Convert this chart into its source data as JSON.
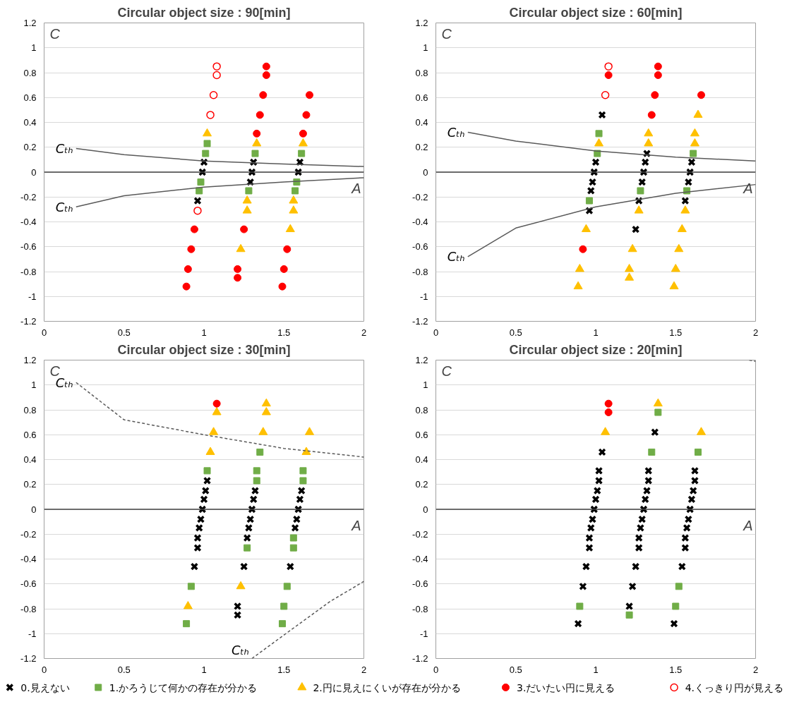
{
  "chart_data": [
    {
      "type": "scatter",
      "title": "Circular object size : 90[min]",
      "xlabel": "A",
      "ylabel": "C",
      "xlim": [
        0,
        2
      ],
      "ylim": [
        -1.2,
        1.2
      ],
      "xticks": [
        0,
        0.5,
        1,
        1.5,
        2
      ],
      "yticks": [
        -1.2,
        -1,
        -0.8,
        -0.6,
        -0.4,
        -0.2,
        0,
        0.2,
        0.4,
        0.6,
        0.8,
        1,
        1.2
      ],
      "grid": "y",
      "legend": "bottom",
      "ref_lines": [
        {
          "axis": "y",
          "value": 0,
          "color": "#404040"
        }
      ],
      "annotations": [
        "Cₜₕ",
        "Cₜₕ"
      ],
      "series": [
        {
          "name": "0.見えない",
          "color": "#000000",
          "marker": "cross",
          "x": [
            1.0,
            0.99,
            0.96,
            1.31,
            1.3,
            1.29,
            1.6,
            1.59
          ],
          "values": [
            0.08,
            0,
            -0.23,
            0.08,
            0,
            -0.08,
            0.08,
            0
          ]
        },
        {
          "name": "1.かろうじて何かの存在が分かる",
          "color": "#70ad47",
          "marker": "square",
          "x": [
            1.02,
            1.01,
            0.98,
            0.97,
            1.32,
            1.28,
            1.61,
            1.58,
            1.57
          ],
          "values": [
            0.23,
            0.15,
            -0.08,
            -0.15,
            0.15,
            -0.15,
            0.15,
            -0.08,
            -0.15
          ]
        },
        {
          "name": "2.円に見えにくいが存在が分かる",
          "color": "#ffc000",
          "marker": "triangle",
          "x": [
            1.02,
            1.33,
            1.27,
            1.27,
            1.23,
            1.62,
            1.56,
            1.56,
            1.54
          ],
          "values": [
            0.31,
            0.23,
            -0.23,
            -0.31,
            -0.62,
            0.23,
            -0.23,
            -0.31,
            -0.46
          ]
        },
        {
          "name": "3.だいたい円に見える",
          "color": "#ff0000",
          "marker": "circle",
          "x": [
            0.94,
            0.92,
            0.9,
            0.89,
            1.39,
            1.39,
            1.37,
            1.35,
            1.33,
            1.25,
            1.21,
            1.21,
            1.66,
            1.64,
            1.62,
            1.52,
            1.5,
            1.49
          ],
          "values": [
            -0.46,
            -0.62,
            -0.78,
            -0.92,
            0.85,
            0.78,
            0.62,
            0.46,
            0.31,
            -0.46,
            -0.78,
            -0.85,
            0.62,
            0.46,
            0.31,
            -0.62,
            -0.78,
            -0.92
          ]
        },
        {
          "name": "4.くっきり円が見える",
          "color": "#ff0000",
          "marker": "circle_open",
          "x": [
            1.08,
            1.08,
            1.06,
            1.04,
            0.96
          ],
          "values": [
            0.85,
            0.78,
            0.62,
            0.46,
            -0.31
          ]
        },
        {
          "type": "line",
          "color": "#595959",
          "line_style": "solid",
          "x": [
            0.2,
            0.5,
            1.0,
            1.5,
            2.0
          ],
          "values": [
            0.19,
            0.14,
            0.09,
            0.065,
            0.045
          ]
        },
        {
          "type": "line",
          "color": "#595959",
          "line_style": "solid",
          "x": [
            0.2,
            0.5,
            1.0,
            1.5,
            2.0
          ],
          "values": [
            -0.28,
            -0.19,
            -0.12,
            -0.08,
            -0.045
          ]
        }
      ]
    },
    {
      "type": "scatter",
      "title": "Circular object size : 60[min]",
      "xlabel": "A",
      "ylabel": "C",
      "xlim": [
        0,
        2
      ],
      "ylim": [
        -1.2,
        1.2
      ],
      "xticks": [
        0,
        0.5,
        1,
        1.5,
        2
      ],
      "yticks": [
        -1.2,
        -1,
        -0.8,
        -0.6,
        -0.4,
        -0.2,
        0,
        0.2,
        0.4,
        0.6,
        0.8,
        1,
        1.2
      ],
      "grid": "y",
      "ref_lines": [
        {
          "axis": "y",
          "value": 0,
          "color": "#404040"
        }
      ],
      "annotations": [
        "Cₜₕ",
        "Cₜₕ"
      ],
      "series": [
        {
          "color": "#000000",
          "marker": "cross",
          "x": [
            1.04,
            1.0,
            0.99,
            0.98,
            0.97,
            0.96,
            1.32,
            1.31,
            1.3,
            1.29,
            1.27,
            1.25,
            1.6,
            1.59,
            1.58,
            1.56
          ],
          "values": [
            0.46,
            0.08,
            0,
            -0.08,
            -0.15,
            -0.31,
            0.15,
            0.08,
            0,
            -0.08,
            -0.23,
            -0.46,
            0.08,
            0,
            -0.08,
            -0.23
          ]
        },
        {
          "color": "#70ad47",
          "marker": "square",
          "x": [
            1.02,
            1.01,
            0.96,
            1.28,
            1.61,
            1.57
          ],
          "values": [
            0.31,
            0.15,
            -0.23,
            -0.15,
            0.15,
            -0.15
          ]
        },
        {
          "color": "#ffc000",
          "marker": "triangle",
          "x": [
            1.02,
            0.94,
            0.9,
            0.89,
            1.33,
            1.33,
            1.27,
            1.23,
            1.21,
            1.21,
            1.64,
            1.62,
            1.62,
            1.56,
            1.54,
            1.52,
            1.5,
            1.49
          ],
          "values": [
            0.23,
            -0.46,
            -0.78,
            -0.92,
            0.31,
            0.23,
            -0.31,
            -0.62,
            -0.78,
            -0.85,
            0.46,
            0.31,
            0.23,
            -0.31,
            -0.46,
            -0.62,
            -0.78,
            -0.92
          ]
        },
        {
          "color": "#ff0000",
          "marker": "circle",
          "x": [
            1.08,
            0.92,
            1.39,
            1.39,
            1.37,
            1.35,
            1.66
          ],
          "values": [
            0.78,
            -0.62,
            0.85,
            0.78,
            0.62,
            0.46,
            0.62
          ]
        },
        {
          "color": "#ff0000",
          "marker": "circle_open",
          "x": [
            1.08,
            1.06
          ],
          "values": [
            0.85,
            0.62
          ]
        },
        {
          "type": "line",
          "color": "#595959",
          "line_style": "solid",
          "x": [
            0.2,
            0.5,
            1.0,
            1.5,
            2.0
          ],
          "values": [
            0.32,
            0.25,
            0.17,
            0.12,
            0.09
          ]
        },
        {
          "type": "line",
          "color": "#595959",
          "line_style": "solid",
          "x": [
            0.2,
            0.5,
            1.0,
            1.5,
            2.0
          ],
          "values": [
            -0.68,
            -0.45,
            -0.28,
            -0.17,
            -0.1
          ]
        }
      ]
    },
    {
      "type": "scatter",
      "title": "Circular object size : 30[min]",
      "xlabel": "A",
      "ylabel": "C",
      "xlim": [
        0,
        2
      ],
      "ylim": [
        -1.2,
        1.2
      ],
      "xticks": [
        0,
        0.5,
        1,
        1.5,
        2
      ],
      "yticks": [
        -1.2,
        -1,
        -0.8,
        -0.6,
        -0.4,
        -0.2,
        0,
        0.2,
        0.4,
        0.6,
        0.8,
        1,
        1.2
      ],
      "grid": "y",
      "ref_lines": [
        {
          "axis": "y",
          "value": 0,
          "color": "#404040"
        }
      ],
      "annotations": [
        "Cₜₕ",
        "Cₜₕ"
      ],
      "series": [
        {
          "color": "#000000",
          "marker": "cross",
          "x": [
            1.02,
            1.01,
            1.0,
            0.99,
            0.98,
            0.97,
            0.96,
            0.96,
            0.94,
            1.32,
            1.31,
            1.3,
            1.29,
            1.28,
            1.27,
            1.25,
            1.21,
            1.21,
            1.61,
            1.6,
            1.59,
            1.58,
            1.57,
            1.54
          ],
          "values": [
            0.23,
            0.15,
            0.08,
            0,
            -0.08,
            -0.15,
            -0.23,
            -0.31,
            -0.46,
            0.15,
            0.08,
            0,
            -0.08,
            -0.15,
            -0.23,
            -0.46,
            -0.78,
            -0.85,
            0.15,
            0.08,
            0,
            -0.08,
            -0.15,
            -0.46
          ]
        },
        {
          "color": "#70ad47",
          "marker": "square",
          "x": [
            1.02,
            0.92,
            0.89,
            1.35,
            1.33,
            1.33,
            1.27,
            1.62,
            1.62,
            1.56,
            1.56,
            1.52,
            1.5,
            1.49
          ],
          "values": [
            0.31,
            -0.62,
            -0.92,
            0.46,
            0.31,
            0.23,
            -0.31,
            0.31,
            0.23,
            -0.23,
            -0.31,
            -0.62,
            -0.78,
            -0.92
          ]
        },
        {
          "color": "#ffc000",
          "marker": "triangle",
          "x": [
            1.08,
            1.06,
            1.04,
            0.9,
            1.39,
            1.39,
            1.37,
            1.23,
            1.66,
            1.64
          ],
          "values": [
            0.78,
            0.62,
            0.46,
            -0.78,
            0.85,
            0.78,
            0.62,
            -0.62,
            0.62,
            0.46
          ]
        },
        {
          "color": "#ff0000",
          "marker": "circle",
          "x": [
            1.08
          ],
          "values": [
            0.85
          ]
        },
        {
          "type": "line",
          "color": "#595959",
          "line_style": "dashed",
          "x": [
            0.2,
            0.5,
            1.0,
            1.5,
            2.0
          ],
          "values": [
            1.02,
            0.72,
            0.6,
            0.49,
            0.42
          ]
        },
        {
          "type": "line",
          "color": "#595959",
          "line_style": "dashed",
          "x": [
            1.3,
            1.48,
            1.79,
            2.0
          ],
          "values": [
            -1.2,
            -1.03,
            -0.74,
            -0.58
          ]
        }
      ]
    },
    {
      "type": "scatter",
      "title": "Circular object size : 20[min]",
      "xlabel": "A",
      "ylabel": "C",
      "xlim": [
        0,
        2
      ],
      "ylim": [
        -1.2,
        1.2
      ],
      "xticks": [
        0,
        0.5,
        1,
        1.5,
        2
      ],
      "yticks": [
        -1.2,
        -1,
        -0.8,
        -0.6,
        -0.4,
        -0.2,
        0,
        0.2,
        0.4,
        0.6,
        0.8,
        1,
        1.2
      ],
      "grid": "y",
      "ref_lines": [
        {
          "axis": "y",
          "value": 0,
          "color": "#404040"
        }
      ],
      "series": [
        {
          "color": "#000000",
          "marker": "cross",
          "x": [
            1.04,
            1.02,
            1.02,
            1.01,
            1.0,
            0.99,
            0.98,
            0.97,
            0.96,
            0.96,
            0.94,
            0.92,
            0.89,
            1.37,
            1.33,
            1.33,
            1.32,
            1.31,
            1.3,
            1.29,
            1.28,
            1.27,
            1.27,
            1.25,
            1.23,
            1.21,
            1.62,
            1.62,
            1.61,
            1.6,
            1.59,
            1.58,
            1.57,
            1.56,
            1.56,
            1.54,
            1.49
          ],
          "values": [
            0.46,
            0.31,
            0.23,
            0.15,
            0.08,
            0,
            -0.08,
            -0.15,
            -0.23,
            -0.31,
            -0.46,
            -0.62,
            -0.92,
            0.62,
            0.31,
            0.23,
            0.15,
            0.08,
            0,
            -0.08,
            -0.15,
            -0.23,
            -0.31,
            -0.46,
            -0.62,
            -0.78,
            0.31,
            0.23,
            0.15,
            0.08,
            0,
            -0.08,
            -0.15,
            -0.23,
            -0.31,
            -0.46,
            -0.92
          ]
        },
        {
          "color": "#70ad47",
          "marker": "square",
          "x": [
            0.9,
            1.39,
            1.35,
            1.21,
            1.64,
            1.52,
            1.5
          ],
          "values": [
            -0.78,
            0.78,
            0.46,
            -0.85,
            0.46,
            -0.62,
            -0.78
          ]
        },
        {
          "color": "#ffc000",
          "marker": "triangle",
          "x": [
            1.06,
            1.39,
            1.66
          ],
          "values": [
            0.62,
            0.85,
            0.62
          ]
        },
        {
          "color": "#ff0000",
          "marker": "circle",
          "x": [
            1.08,
            1.08
          ],
          "values": [
            0.85,
            0.78
          ]
        },
        {
          "type": "line",
          "color": "#595959",
          "line_style": "dashed",
          "x": [
            1.96,
            2.0
          ],
          "values": [
            1.2,
            1.19
          ]
        }
      ]
    }
  ]
}
